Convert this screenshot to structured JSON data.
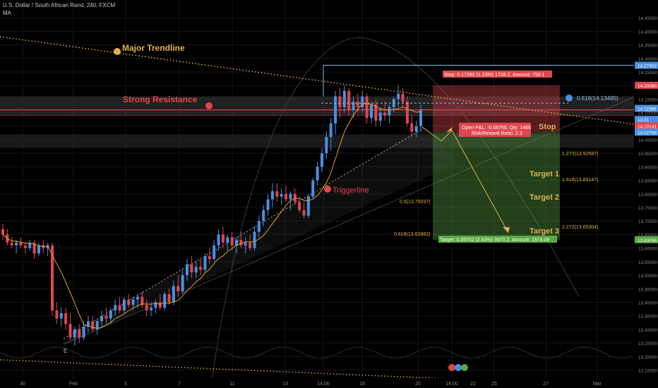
{
  "header": {
    "title": "U.S. Dollar / South African Rand, 240, FXCM",
    "indicator": "MA"
  },
  "colors": {
    "up": "#4a90e2",
    "down": "#e0464e",
    "ma": "#e0a030",
    "trend": "#e0b050",
    "stop": "#e0464e",
    "target": "#5aa845",
    "resistance": "#e0464e"
  },
  "annotations": {
    "major_trendline": "Major Trendline",
    "strong_resistance": "Strong Resistance",
    "triggerline": "Triggerline",
    "stop_label": "Stop",
    "target1": "Target 1",
    "target2": "Target 2",
    "target3": "Target 3",
    "stop_box": "Stop: 0.17282 (1.23%) 1728.2, Amount: 750.1",
    "open_pl": "Open P&L: -0.08768, Qty: 1466",
    "rr": "Risk/Reward Ratio: 2.3",
    "target_box": "Target: 0.39702 (2.83%) 3970.2, Amount: 1574.09",
    "fib_0618_top": "0.618(14.13495)",
    "fib_1272": "1.272(13.92587)",
    "fib_1618": "1.618(13.83147)",
    "fib_05": "0.5(13.75037)",
    "fib_2272": "2.272(13.65304)",
    "fib_0618_low": "0.618(13.62882)",
    "e_label": "E"
  },
  "price_tags": [
    {
      "label": "14.27462",
      "value": 14.27462,
      "color": "#4a90e2"
    },
    {
      "label": "14.20080",
      "value": 14.2008,
      "color": "#e0464e"
    },
    {
      "label": "14.11566",
      "value": 14.11566,
      "color": "#4a90e2"
    },
    {
      "label": "13:21",
      "value": 14.075,
      "color": "#4a90e2"
    },
    {
      "label": "14.10141",
      "value": 14.05141,
      "color": "#e0464e"
    },
    {
      "label": "14.02798",
      "value": 14.02798,
      "color": "#4a90e2"
    },
    {
      "label": "13.63096",
      "value": 13.63096,
      "color": "#5aa845"
    }
  ],
  "chart_data": {
    "type": "candlestick",
    "title": "U.S. Dollar / South African Rand, 240, FXCM",
    "ylim": [
      13.12,
      14.5
    ],
    "y_ticks": [
      "13.15000",
      "13.20000",
      "13.25000",
      "13.30000",
      "13.35000",
      "13.40000",
      "13.45000",
      "13.50000",
      "13.55000",
      "13.60000",
      "13.65000",
      "13.70000",
      "13.75000",
      "13.80000",
      "13.85000",
      "13.90000",
      "13.95000",
      "14.00000",
      "14.05000",
      "14.10000",
      "14.15000",
      "14.20000",
      "14.25000",
      "14.30000",
      "14.35000",
      "14.40000",
      "14.45000"
    ],
    "x_ticks": [
      "30",
      "Feb",
      "5",
      "7",
      "11",
      "13",
      "14:00",
      "18",
      "20",
      "14:00",
      "22",
      "25",
      "27",
      "Mar"
    ],
    "candles": [
      {
        "o": 13.67,
        "h": 13.69,
        "l": 13.63,
        "c": 13.65
      },
      {
        "o": 13.65,
        "h": 13.67,
        "l": 13.61,
        "c": 13.62
      },
      {
        "o": 13.62,
        "h": 13.64,
        "l": 13.6,
        "c": 13.61
      },
      {
        "o": 13.61,
        "h": 13.63,
        "l": 13.58,
        "c": 13.62
      },
      {
        "o": 13.62,
        "h": 13.64,
        "l": 13.6,
        "c": 13.61
      },
      {
        "o": 13.61,
        "h": 13.62,
        "l": 13.58,
        "c": 13.6
      },
      {
        "o": 13.6,
        "h": 13.63,
        "l": 13.59,
        "c": 13.62
      },
      {
        "o": 13.62,
        "h": 13.63,
        "l": 13.56,
        "c": 13.58
      },
      {
        "o": 13.58,
        "h": 13.62,
        "l": 13.57,
        "c": 13.61
      },
      {
        "o": 13.61,
        "h": 13.63,
        "l": 13.58,
        "c": 13.6
      },
      {
        "o": 13.6,
        "h": 13.62,
        "l": 13.57,
        "c": 13.61
      },
      {
        "o": 13.61,
        "h": 13.62,
        "l": 13.35,
        "c": 13.37
      },
      {
        "o": 13.37,
        "h": 13.4,
        "l": 13.32,
        "c": 13.34
      },
      {
        "o": 13.34,
        "h": 13.38,
        "l": 13.31,
        "c": 13.36
      },
      {
        "o": 13.36,
        "h": 13.38,
        "l": 13.3,
        "c": 13.32
      },
      {
        "o": 13.32,
        "h": 13.36,
        "l": 13.26,
        "c": 13.27
      },
      {
        "o": 13.27,
        "h": 13.31,
        "l": 13.24,
        "c": 13.3
      },
      {
        "o": 13.3,
        "h": 13.32,
        "l": 13.25,
        "c": 13.27
      },
      {
        "o": 13.27,
        "h": 13.33,
        "l": 13.26,
        "c": 13.31
      },
      {
        "o": 13.31,
        "h": 13.35,
        "l": 13.29,
        "c": 13.33
      },
      {
        "o": 13.33,
        "h": 13.35,
        "l": 13.29,
        "c": 13.3
      },
      {
        "o": 13.3,
        "h": 13.34,
        "l": 13.28,
        "c": 13.33
      },
      {
        "o": 13.33,
        "h": 13.37,
        "l": 13.31,
        "c": 13.35
      },
      {
        "o": 13.35,
        "h": 13.38,
        "l": 13.32,
        "c": 13.34
      },
      {
        "o": 13.34,
        "h": 13.38,
        "l": 13.32,
        "c": 13.37
      },
      {
        "o": 13.37,
        "h": 13.41,
        "l": 13.35,
        "c": 13.39
      },
      {
        "o": 13.39,
        "h": 13.42,
        "l": 13.36,
        "c": 13.37
      },
      {
        "o": 13.37,
        "h": 13.42,
        "l": 13.36,
        "c": 13.41
      },
      {
        "o": 13.41,
        "h": 13.43,
        "l": 13.38,
        "c": 13.39
      },
      {
        "o": 13.39,
        "h": 13.42,
        "l": 13.37,
        "c": 13.41
      },
      {
        "o": 13.41,
        "h": 13.43,
        "l": 13.38,
        "c": 13.42
      },
      {
        "o": 13.42,
        "h": 13.44,
        "l": 13.38,
        "c": 13.39
      },
      {
        "o": 13.39,
        "h": 13.41,
        "l": 13.35,
        "c": 13.37
      },
      {
        "o": 13.37,
        "h": 13.4,
        "l": 13.35,
        "c": 13.38
      },
      {
        "o": 13.38,
        "h": 13.41,
        "l": 13.36,
        "c": 13.4
      },
      {
        "o": 13.4,
        "h": 13.43,
        "l": 13.37,
        "c": 13.38
      },
      {
        "o": 13.38,
        "h": 13.44,
        "l": 13.37,
        "c": 13.43
      },
      {
        "o": 13.43,
        "h": 13.45,
        "l": 13.39,
        "c": 13.4
      },
      {
        "o": 13.4,
        "h": 13.48,
        "l": 13.39,
        "c": 13.46
      },
      {
        "o": 13.46,
        "h": 13.5,
        "l": 13.42,
        "c": 13.44
      },
      {
        "o": 13.44,
        "h": 13.52,
        "l": 13.43,
        "c": 13.5
      },
      {
        "o": 13.5,
        "h": 13.56,
        "l": 13.48,
        "c": 13.54
      },
      {
        "o": 13.54,
        "h": 13.57,
        "l": 13.49,
        "c": 13.51
      },
      {
        "o": 13.51,
        "h": 13.55,
        "l": 13.49,
        "c": 13.53
      },
      {
        "o": 13.53,
        "h": 13.56,
        "l": 13.5,
        "c": 13.52
      },
      {
        "o": 13.52,
        "h": 13.58,
        "l": 13.51,
        "c": 13.57
      },
      {
        "o": 13.57,
        "h": 13.6,
        "l": 13.54,
        "c": 13.56
      },
      {
        "o": 13.56,
        "h": 13.63,
        "l": 13.55,
        "c": 13.61
      },
      {
        "o": 13.61,
        "h": 13.67,
        "l": 13.59,
        "c": 13.65
      },
      {
        "o": 13.65,
        "h": 13.68,
        "l": 13.6,
        "c": 13.62
      },
      {
        "o": 13.62,
        "h": 13.65,
        "l": 13.59,
        "c": 13.64
      },
      {
        "o": 13.64,
        "h": 13.66,
        "l": 13.6,
        "c": 13.61
      },
      {
        "o": 13.61,
        "h": 13.64,
        "l": 13.58,
        "c": 13.63
      },
      {
        "o": 13.63,
        "h": 13.66,
        "l": 13.6,
        "c": 13.61
      },
      {
        "o": 13.61,
        "h": 13.64,
        "l": 13.58,
        "c": 13.62
      },
      {
        "o": 13.62,
        "h": 13.65,
        "l": 13.59,
        "c": 13.6
      },
      {
        "o": 13.6,
        "h": 13.68,
        "l": 13.59,
        "c": 13.66
      },
      {
        "o": 13.66,
        "h": 13.72,
        "l": 13.64,
        "c": 13.7
      },
      {
        "o": 13.7,
        "h": 13.76,
        "l": 13.68,
        "c": 13.74
      },
      {
        "o": 13.74,
        "h": 13.8,
        "l": 13.72,
        "c": 13.78
      },
      {
        "o": 13.78,
        "h": 13.84,
        "l": 13.75,
        "c": 13.81
      },
      {
        "o": 13.81,
        "h": 13.84,
        "l": 13.77,
        "c": 13.79
      },
      {
        "o": 13.79,
        "h": 13.82,
        "l": 13.76,
        "c": 13.8
      },
      {
        "o": 13.8,
        "h": 13.83,
        "l": 13.77,
        "c": 13.78
      },
      {
        "o": 13.78,
        "h": 13.81,
        "l": 13.74,
        "c": 13.8
      },
      {
        "o": 13.8,
        "h": 13.82,
        "l": 13.76,
        "c": 13.77
      },
      {
        "o": 13.77,
        "h": 13.79,
        "l": 13.73,
        "c": 13.74
      },
      {
        "o": 13.74,
        "h": 13.77,
        "l": 13.71,
        "c": 13.72
      },
      {
        "o": 13.72,
        "h": 13.8,
        "l": 13.71,
        "c": 13.79
      },
      {
        "o": 13.79,
        "h": 13.86,
        "l": 13.78,
        "c": 13.85
      },
      {
        "o": 13.85,
        "h": 13.92,
        "l": 13.83,
        "c": 13.9
      },
      {
        "o": 13.9,
        "h": 13.97,
        "l": 13.88,
        "c": 13.95
      },
      {
        "o": 13.95,
        "h": 14.03,
        "l": 13.93,
        "c": 14.01
      },
      {
        "o": 14.01,
        "h": 14.08,
        "l": 13.96,
        "c": 14.06
      },
      {
        "o": 14.06,
        "h": 14.18,
        "l": 14.02,
        "c": 14.16
      },
      {
        "o": 14.16,
        "h": 14.19,
        "l": 14.08,
        "c": 14.12
      },
      {
        "o": 14.12,
        "h": 14.2,
        "l": 14.1,
        "c": 14.18
      },
      {
        "o": 14.18,
        "h": 14.19,
        "l": 14.09,
        "c": 14.11
      },
      {
        "o": 14.11,
        "h": 14.16,
        "l": 14.08,
        "c": 14.14
      },
      {
        "o": 14.14,
        "h": 14.17,
        "l": 14.1,
        "c": 14.12
      },
      {
        "o": 14.12,
        "h": 14.18,
        "l": 14.1,
        "c": 14.16
      },
      {
        "o": 14.16,
        "h": 14.17,
        "l": 14.06,
        "c": 14.08
      },
      {
        "o": 14.08,
        "h": 14.14,
        "l": 14.06,
        "c": 14.13
      },
      {
        "o": 14.13,
        "h": 14.15,
        "l": 14.05,
        "c": 14.07
      },
      {
        "o": 14.07,
        "h": 14.12,
        "l": 14.05,
        "c": 14.1
      },
      {
        "o": 14.1,
        "h": 14.14,
        "l": 14.07,
        "c": 14.09
      },
      {
        "o": 14.09,
        "h": 14.13,
        "l": 14.06,
        "c": 14.12
      },
      {
        "o": 14.12,
        "h": 14.16,
        "l": 14.1,
        "c": 14.15
      },
      {
        "o": 14.15,
        "h": 14.2,
        "l": 14.12,
        "c": 14.17
      },
      {
        "o": 14.17,
        "h": 14.19,
        "l": 14.12,
        "c": 14.14
      },
      {
        "o": 14.14,
        "h": 14.16,
        "l": 14.05,
        "c": 14.06
      },
      {
        "o": 14.06,
        "h": 14.09,
        "l": 14.01,
        "c": 14.03
      },
      {
        "o": 14.03,
        "h": 14.07,
        "l": 14.01,
        "c": 14.05
      },
      {
        "o": 14.05,
        "h": 14.13,
        "l": 14.03,
        "c": 14.11
      }
    ]
  }
}
